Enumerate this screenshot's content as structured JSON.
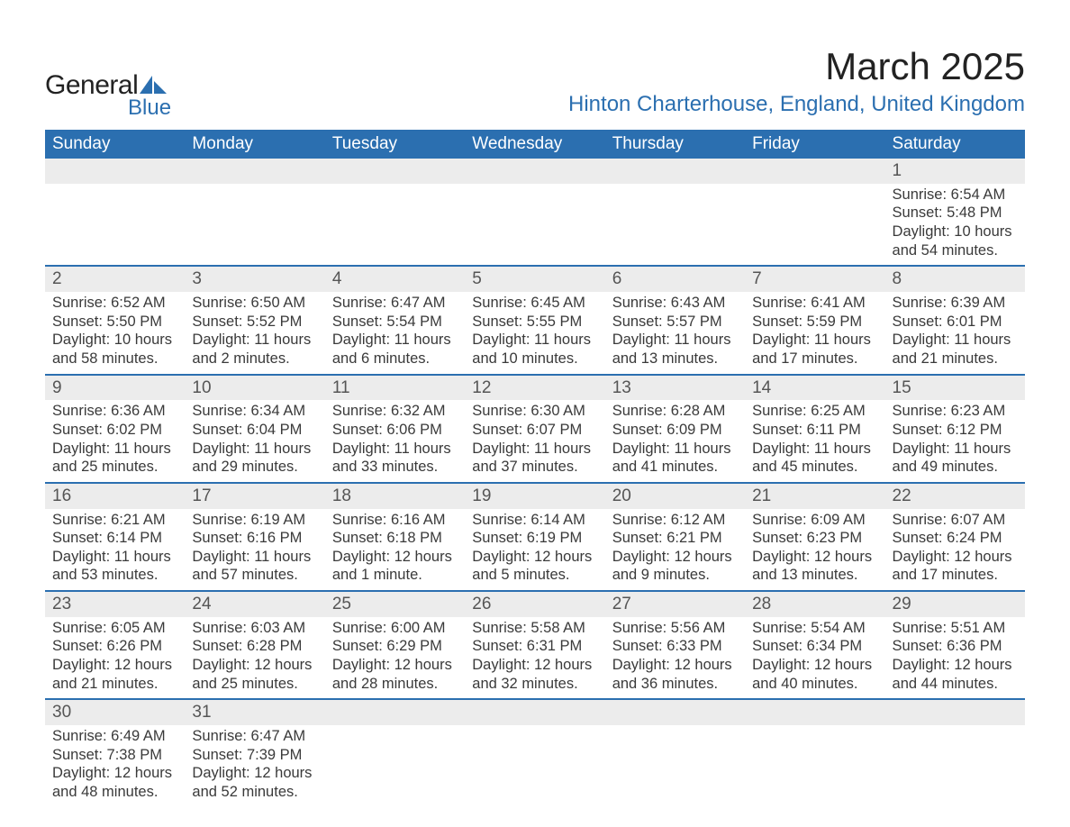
{
  "brand": {
    "general": "General",
    "blue": "Blue",
    "sail_color": "#2b6fb0"
  },
  "header": {
    "month_title": "March 2025",
    "location": "Hinton Charterhouse, England, United Kingdom"
  },
  "colors": {
    "header_bg": "#2b6fb0",
    "header_text": "#ffffff",
    "daynum_bg": "#ececec",
    "row_border": "#2b6fb0",
    "body_text": "#3a3a3a"
  },
  "weekdays": [
    "Sunday",
    "Monday",
    "Tuesday",
    "Wednesday",
    "Thursday",
    "Friday",
    "Saturday"
  ],
  "weeks": [
    [
      null,
      null,
      null,
      null,
      null,
      null,
      {
        "n": "1",
        "sr": "6:54 AM",
        "ss": "5:48 PM",
        "dl": "10 hours and 54 minutes."
      }
    ],
    [
      {
        "n": "2",
        "sr": "6:52 AM",
        "ss": "5:50 PM",
        "dl": "10 hours and 58 minutes."
      },
      {
        "n": "3",
        "sr": "6:50 AM",
        "ss": "5:52 PM",
        "dl": "11 hours and 2 minutes."
      },
      {
        "n": "4",
        "sr": "6:47 AM",
        "ss": "5:54 PM",
        "dl": "11 hours and 6 minutes."
      },
      {
        "n": "5",
        "sr": "6:45 AM",
        "ss": "5:55 PM",
        "dl": "11 hours and 10 minutes."
      },
      {
        "n": "6",
        "sr": "6:43 AM",
        "ss": "5:57 PM",
        "dl": "11 hours and 13 minutes."
      },
      {
        "n": "7",
        "sr": "6:41 AM",
        "ss": "5:59 PM",
        "dl": "11 hours and 17 minutes."
      },
      {
        "n": "8",
        "sr": "6:39 AM",
        "ss": "6:01 PM",
        "dl": "11 hours and 21 minutes."
      }
    ],
    [
      {
        "n": "9",
        "sr": "6:36 AM",
        "ss": "6:02 PM",
        "dl": "11 hours and 25 minutes."
      },
      {
        "n": "10",
        "sr": "6:34 AM",
        "ss": "6:04 PM",
        "dl": "11 hours and 29 minutes."
      },
      {
        "n": "11",
        "sr": "6:32 AM",
        "ss": "6:06 PM",
        "dl": "11 hours and 33 minutes."
      },
      {
        "n": "12",
        "sr": "6:30 AM",
        "ss": "6:07 PM",
        "dl": "11 hours and 37 minutes."
      },
      {
        "n": "13",
        "sr": "6:28 AM",
        "ss": "6:09 PM",
        "dl": "11 hours and 41 minutes."
      },
      {
        "n": "14",
        "sr": "6:25 AM",
        "ss": "6:11 PM",
        "dl": "11 hours and 45 minutes."
      },
      {
        "n": "15",
        "sr": "6:23 AM",
        "ss": "6:12 PM",
        "dl": "11 hours and 49 minutes."
      }
    ],
    [
      {
        "n": "16",
        "sr": "6:21 AM",
        "ss": "6:14 PM",
        "dl": "11 hours and 53 minutes."
      },
      {
        "n": "17",
        "sr": "6:19 AM",
        "ss": "6:16 PM",
        "dl": "11 hours and 57 minutes."
      },
      {
        "n": "18",
        "sr": "6:16 AM",
        "ss": "6:18 PM",
        "dl": "12 hours and 1 minute."
      },
      {
        "n": "19",
        "sr": "6:14 AM",
        "ss": "6:19 PM",
        "dl": "12 hours and 5 minutes."
      },
      {
        "n": "20",
        "sr": "6:12 AM",
        "ss": "6:21 PM",
        "dl": "12 hours and 9 minutes."
      },
      {
        "n": "21",
        "sr": "6:09 AM",
        "ss": "6:23 PM",
        "dl": "12 hours and 13 minutes."
      },
      {
        "n": "22",
        "sr": "6:07 AM",
        "ss": "6:24 PM",
        "dl": "12 hours and 17 minutes."
      }
    ],
    [
      {
        "n": "23",
        "sr": "6:05 AM",
        "ss": "6:26 PM",
        "dl": "12 hours and 21 minutes."
      },
      {
        "n": "24",
        "sr": "6:03 AM",
        "ss": "6:28 PM",
        "dl": "12 hours and 25 minutes."
      },
      {
        "n": "25",
        "sr": "6:00 AM",
        "ss": "6:29 PM",
        "dl": "12 hours and 28 minutes."
      },
      {
        "n": "26",
        "sr": "5:58 AM",
        "ss": "6:31 PM",
        "dl": "12 hours and 32 minutes."
      },
      {
        "n": "27",
        "sr": "5:56 AM",
        "ss": "6:33 PM",
        "dl": "12 hours and 36 minutes."
      },
      {
        "n": "28",
        "sr": "5:54 AM",
        "ss": "6:34 PM",
        "dl": "12 hours and 40 minutes."
      },
      {
        "n": "29",
        "sr": "5:51 AM",
        "ss": "6:36 PM",
        "dl": "12 hours and 44 minutes."
      }
    ],
    [
      {
        "n": "30",
        "sr": "6:49 AM",
        "ss": "7:38 PM",
        "dl": "12 hours and 48 minutes."
      },
      {
        "n": "31",
        "sr": "6:47 AM",
        "ss": "7:39 PM",
        "dl": "12 hours and 52 minutes."
      },
      null,
      null,
      null,
      null,
      null
    ]
  ],
  "labels": {
    "sunrise": "Sunrise:",
    "sunset": "Sunset:",
    "daylight": "Daylight:"
  }
}
